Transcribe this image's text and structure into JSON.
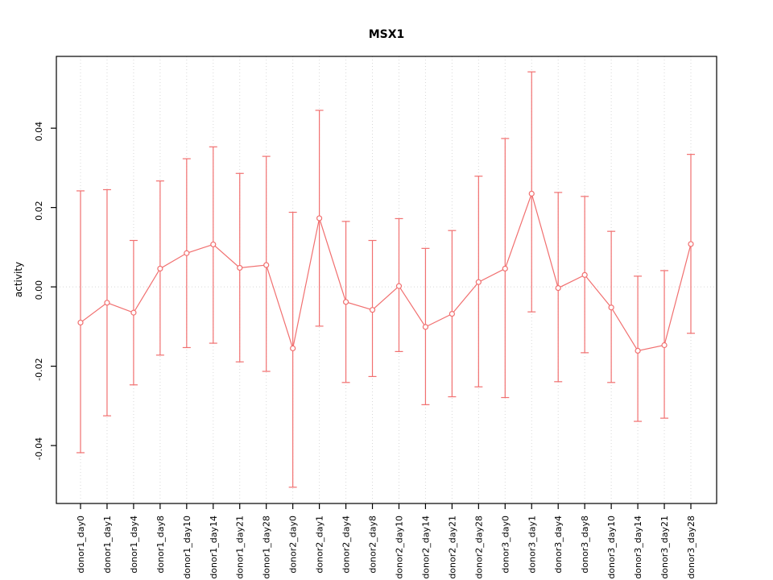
{
  "chart_data": {
    "type": "line",
    "title": "MSX1",
    "xlabel": "",
    "ylabel": "activity",
    "ylim": [
      -0.0546,
      0.0581
    ],
    "yticks": [
      -0.04,
      -0.02,
      0.0,
      0.02,
      0.04
    ],
    "grid": "vertical-dotted-plus-zero-line",
    "legend": "none",
    "series_color": "#f17070",
    "grid_color": "#d8d8d8",
    "box_color": "#000000",
    "point_style": "open-circle",
    "categories": [
      "donor1_day0",
      "donor1_day1",
      "donor1_day4",
      "donor1_day8",
      "donor1_day10",
      "donor1_day14",
      "donor1_day21",
      "donor1_day28",
      "donor2_day0",
      "donor2_day1",
      "donor2_day4",
      "donor2_day8",
      "donor2_day10",
      "donor2_day14",
      "donor2_day21",
      "donor2_day28",
      "donor3_day0",
      "donor3_day1",
      "donor3_day4",
      "donor3_day8",
      "donor3_day10",
      "donor3_day14",
      "donor3_day21",
      "donor3_day28"
    ],
    "series": [
      {
        "name": "activity",
        "values": [
          -0.009,
          -0.004,
          -0.0065,
          0.0046,
          0.0085,
          0.0107,
          0.0048,
          0.0055,
          -0.0155,
          0.0173,
          -0.0038,
          -0.0058,
          0.0002,
          -0.0101,
          -0.0068,
          0.0012,
          0.0046,
          0.0235,
          -0.0003,
          0.003,
          -0.0052,
          -0.0161,
          -0.0147,
          0.0108
        ],
        "err_high": [
          0.0242,
          0.0245,
          0.0117,
          0.0267,
          0.0323,
          0.0353,
          0.0286,
          0.0329,
          0.0188,
          0.0445,
          0.0165,
          0.0117,
          0.0172,
          0.0097,
          0.0142,
          0.0279,
          0.0374,
          0.0542,
          0.0238,
          0.0228,
          0.014,
          0.0027,
          0.0041,
          0.0334
        ],
        "err_low": [
          -0.0418,
          -0.0325,
          -0.0247,
          -0.0172,
          -0.0153,
          -0.0142,
          -0.0189,
          -0.0213,
          -0.0505,
          -0.0099,
          -0.0241,
          -0.0226,
          -0.0163,
          -0.0297,
          -0.0277,
          -0.0252,
          -0.0279,
          -0.0063,
          -0.0239,
          -0.0166,
          -0.0241,
          -0.0339,
          -0.0331,
          -0.0117
        ]
      }
    ]
  }
}
